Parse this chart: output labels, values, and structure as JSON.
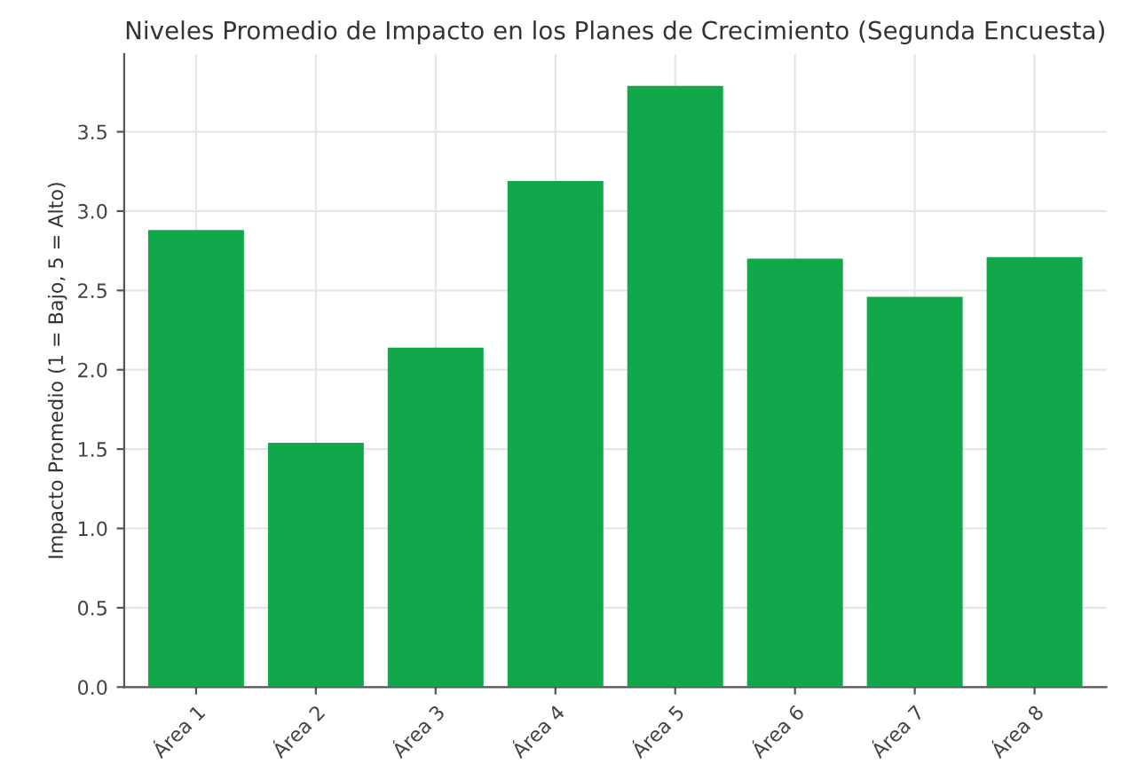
{
  "chart_data": {
    "type": "bar",
    "title": "Niveles Promedio de Impacto en los Planes de Crecimiento (Segunda Encuesta)",
    "ylabel": "Impacto Promedio (1 = Bajo, 5 = Alto)",
    "categories": [
      "Área 1",
      "Área 2",
      "Área 3",
      "Área 4",
      "Área 5",
      "Área 6",
      "Área 7",
      "Área 8"
    ],
    "values": [
      2.88,
      1.54,
      2.14,
      3.19,
      3.79,
      2.7,
      2.46,
      2.71
    ],
    "color": "#10a84a",
    "ylim": [
      0,
      3.99
    ],
    "yticks": [
      {
        "value": 0,
        "label": "0.0"
      },
      0.5,
      {
        "value": 1,
        "label": "1.0"
      },
      1.5,
      {
        "value": 2,
        "label": "2.0"
      },
      2.5,
      {
        "value": 3,
        "label": "3.0"
      },
      3.5
    ],
    "grid": true
  }
}
